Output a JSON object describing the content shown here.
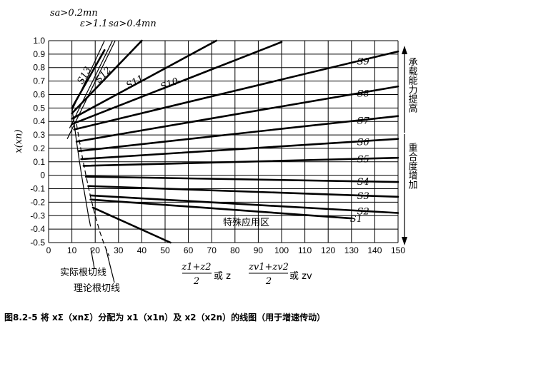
{
  "chart_data": {
    "type": "line",
    "title": "",
    "xlim": [
      0,
      150
    ],
    "ylim": [
      -0.5,
      1.0
    ],
    "x_ticks": [
      "0",
      "10",
      "20",
      "30",
      "40",
      "50",
      "60",
      "70",
      "80",
      "90",
      "100",
      "110",
      "120",
      "130",
      "140",
      "150"
    ],
    "y_ticks": [
      "1.0",
      "0.9",
      "0.8",
      "0.7",
      "0.6",
      "0.5",
      "0.4",
      "0.3",
      "0.2",
      "0.1",
      "0",
      "-0.1",
      "-0.2",
      "-0.3",
      "-0.4",
      "-0.5"
    ],
    "ylabel": "x(xn)",
    "xlabel_1": {
      "num": "z1+z2",
      "den": "2",
      "suffix": "或 z"
    },
    "xlabel_2": {
      "num": "zv1+zv2",
      "den": "2",
      "suffix": "或 zv"
    },
    "grid": true,
    "series": [
      {
        "name": "S13",
        "x": [
          10,
          24
        ],
        "y": [
          0.5,
          0.93
        ]
      },
      {
        "name": "S12",
        "x": [
          10,
          40
        ],
        "y": [
          0.46,
          1.0
        ]
      },
      {
        "name": "S11",
        "x": [
          10,
          72
        ],
        "y": [
          0.42,
          1.0
        ]
      },
      {
        "name": "S10",
        "x": [
          10,
          100
        ],
        "y": [
          0.38,
          0.99
        ]
      },
      {
        "name": "S9",
        "x": [
          11,
          150
        ],
        "y": [
          0.34,
          0.92
        ]
      },
      {
        "name": "S8",
        "x": [
          12,
          150
        ],
        "y": [
          0.25,
          0.66
        ]
      },
      {
        "name": "S7",
        "x": [
          13,
          150
        ],
        "y": [
          0.18,
          0.44
        ]
      },
      {
        "name": "S6",
        "x": [
          14,
          150
        ],
        "y": [
          0.12,
          0.27
        ]
      },
      {
        "name": "S5",
        "x": [
          15,
          150
        ],
        "y": [
          0.07,
          0.13
        ]
      },
      {
        "name": "S4",
        "x": [
          16,
          150
        ],
        "y": [
          -0.01,
          -0.05
        ]
      },
      {
        "name": "S3",
        "x": [
          17,
          150
        ],
        "y": [
          -0.08,
          -0.16
        ]
      },
      {
        "name": "S2",
        "x": [
          18,
          150
        ],
        "y": [
          -0.15,
          -0.28
        ]
      },
      {
        "name": "S1",
        "x": [
          18,
          130
        ],
        "y": [
          -0.18,
          -0.32
        ]
      }
    ],
    "special_line": {
      "x": [
        19,
        60
      ],
      "y": [
        -0.24,
        -0.56
      ]
    },
    "aux_lines": [
      {
        "name": "sa>0.2mn",
        "x": [
          8,
          30
        ],
        "y": [
          0.27,
          1.05
        ]
      },
      {
        "name": "ε>1.1",
        "x": [
          9,
          28
        ],
        "y": [
          0.35,
          1.02
        ]
      },
      {
        "name": "sa>0.4mn",
        "x": [
          10,
          24
        ],
        "y": [
          0.48,
          1.0
        ]
      }
    ],
    "actual_root_cut": {
      "x": [
        10,
        11,
        12,
        13,
        14,
        15,
        16,
        17,
        18
      ],
      "y": [
        0.5,
        0.38,
        0.25,
        0.13,
        0.02,
        -0.09,
        -0.19,
        -0.29,
        -0.38
      ]
    },
    "theory_root_cut": {
      "x": [
        12,
        14,
        16,
        18,
        20,
        22,
        24,
        26
      ],
      "y": [
        0.38,
        0.18,
        0.0,
        -0.16,
        -0.3,
        -0.42,
        -0.52,
        -0.6
      ]
    },
    "annotations": {
      "sa02": "sa>0.2mn",
      "eps": "ε>1.1",
      "sa04": "sa>0.4mn",
      "special_zone": "特殊应用区",
      "actual_root": "实际根切线",
      "theory_root": "理论根切线",
      "right_up": "承载能力提高",
      "right_down": "重合度增加"
    }
  },
  "caption": "图8.2-5   将 xΣ（xnΣ）分配为 x1（x1n）及 x2（x2n）的线图（用于增速传动）"
}
